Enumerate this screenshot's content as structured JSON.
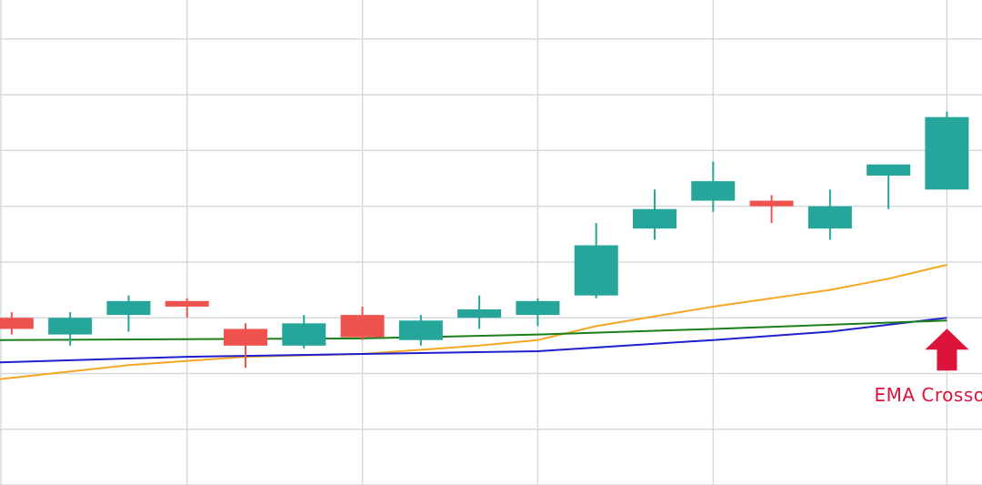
{
  "chart_data": {
    "type": "candlestick",
    "title": "",
    "xlabel": "",
    "ylabel": "",
    "ylim": [
      0,
      8.7
    ],
    "xlim": [
      -0.2,
      16.6
    ],
    "grid": true,
    "grid_x": [
      3,
      6,
      9,
      12,
      16
    ],
    "grid_y": [
      0,
      1,
      2,
      3,
      4,
      5,
      6,
      7,
      8
    ],
    "colors": {
      "up": "#26a69a",
      "down": "#ef5350"
    },
    "candles": [
      {
        "x": 0,
        "open": 3.0,
        "high": 3.1,
        "low": 2.7,
        "close": 2.8
      },
      {
        "x": 1,
        "open": 2.7,
        "high": 3.1,
        "low": 2.5,
        "close": 3.0
      },
      {
        "x": 2,
        "open": 3.05,
        "high": 3.4,
        "low": 2.75,
        "close": 3.3
      },
      {
        "x": 3,
        "open": 3.3,
        "high": 3.35,
        "low": 3.0,
        "close": 3.2
      },
      {
        "x": 4,
        "open": 2.8,
        "high": 2.9,
        "low": 2.1,
        "close": 2.5
      },
      {
        "x": 5,
        "open": 2.5,
        "high": 3.05,
        "low": 2.45,
        "close": 2.9
      },
      {
        "x": 6,
        "open": 3.05,
        "high": 3.2,
        "low": 2.6,
        "close": 2.65
      },
      {
        "x": 7,
        "open": 2.6,
        "high": 3.05,
        "low": 2.5,
        "close": 2.95
      },
      {
        "x": 8,
        "open": 3.0,
        "high": 3.4,
        "low": 2.8,
        "close": 3.15
      },
      {
        "x": 9,
        "open": 3.05,
        "high": 3.35,
        "low": 2.85,
        "close": 3.3
      },
      {
        "x": 10,
        "open": 3.4,
        "high": 4.7,
        "low": 3.35,
        "close": 4.3
      },
      {
        "x": 11,
        "open": 4.6,
        "high": 5.3,
        "low": 4.4,
        "close": 4.95
      },
      {
        "x": 12,
        "open": 5.1,
        "high": 5.8,
        "low": 4.9,
        "close": 5.45
      },
      {
        "x": 13,
        "open": 5.1,
        "high": 5.2,
        "low": 4.7,
        "close": 5.0
      },
      {
        "x": 14,
        "open": 4.6,
        "high": 5.3,
        "low": 4.4,
        "close": 5.0
      },
      {
        "x": 15,
        "open": 5.55,
        "high": 5.7,
        "low": 4.95,
        "close": 5.75
      },
      {
        "x": 16,
        "open": 5.3,
        "high": 6.7,
        "low": 5.3,
        "close": 6.6
      }
    ],
    "series": [
      {
        "color": "#f5a623",
        "x": [
          -0.2,
          2,
          4,
          6,
          8,
          9,
          10,
          12,
          14,
          15,
          16
        ],
        "values": [
          1.9,
          2.15,
          2.3,
          2.35,
          2.5,
          2.6,
          2.85,
          3.2,
          3.5,
          3.7,
          3.95
        ]
      },
      {
        "color": "#1f1fd0",
        "x": [
          -0.2,
          3,
          6,
          9,
          12,
          14,
          16
        ],
        "values": [
          2.2,
          2.3,
          2.35,
          2.4,
          2.6,
          2.75,
          3.0
        ]
      },
      {
        "color": "#1a7f1a",
        "x": [
          -0.2,
          6,
          9,
          12,
          16
        ],
        "values": [
          2.6,
          2.63,
          2.7,
          2.8,
          2.95
        ]
      }
    ],
    "annotations": [
      {
        "text": "EMA Crossover",
        "x": 16,
        "y": 3.0,
        "color": "#dc143c",
        "marker": "up-arrow"
      }
    ]
  }
}
